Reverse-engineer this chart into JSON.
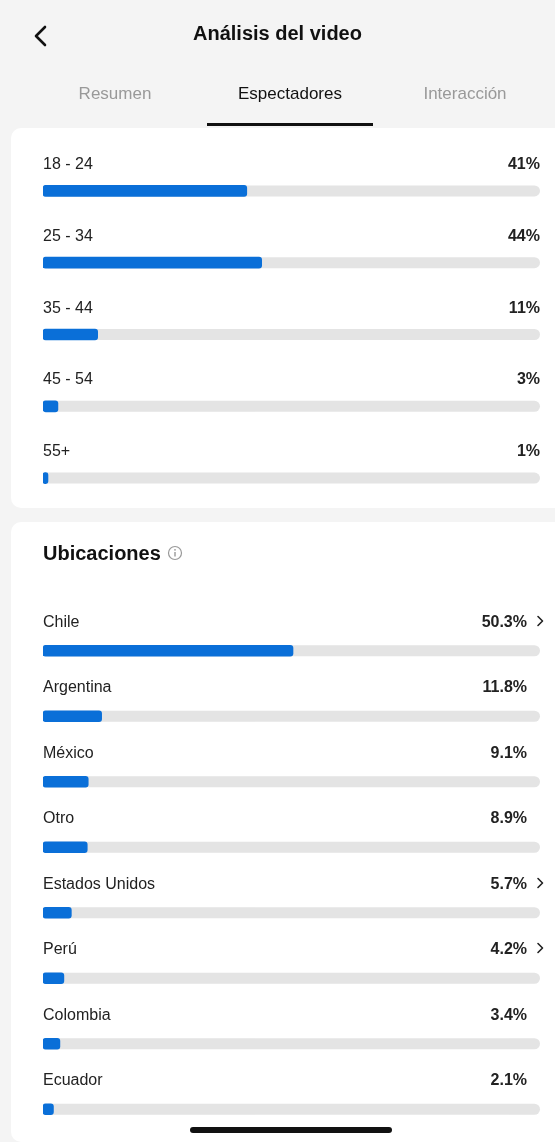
{
  "chart_data": [
    {
      "type": "bar",
      "orientation": "horizontal",
      "title": "Análisis del video",
      "annotations": [
        "Resumen",
        "Espectadores",
        "Interacción"
      ],
      "categories": [
        "18 - 24",
        "25 - 34",
        "35 - 44",
        "45 - 54",
        "55+"
      ],
      "values": [
        41,
        44,
        11,
        3,
        1
      ],
      "value_labels": [
        "41%",
        "44%",
        "11%",
        "3%",
        "1%"
      ],
      "color": "#0a6fd8",
      "xlim": [
        0,
        100
      ],
      "tick_labels": false
    },
    {
      "type": "bar",
      "orientation": "horizontal",
      "title": "Ubicaciones",
      "categories": [
        "Chile",
        "Argentina",
        "México",
        "Otro",
        "Estados Unidos",
        "Perú",
        "Colombia",
        "Ecuador"
      ],
      "values": [
        50.3,
        11.8,
        9.1,
        8.9,
        5.7,
        4.2,
        3.4,
        2.1
      ],
      "value_labels": [
        "50.3%",
        "11.8%",
        "9.1%",
        "8.9%",
        "5.7%",
        "4.2%",
        "3.4%",
        "2.1%"
      ],
      "color": "#0a6fd8",
      "xlim": [
        0,
        100
      ],
      "tick_labels": false
    }
  ]
}
